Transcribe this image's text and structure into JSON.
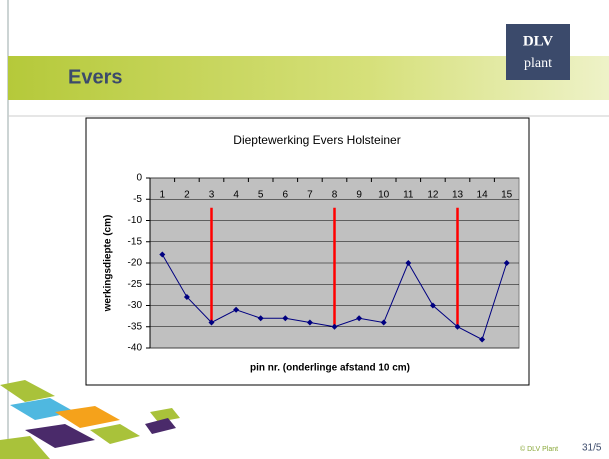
{
  "slide": {
    "title": "Evers",
    "logo": [
      "DLV",
      "plant"
    ],
    "copyright": "© DLV Plant",
    "page": "31/5"
  },
  "chart_data": {
    "type": "line",
    "title": "Dieptewerking Evers Holsteiner",
    "x_label": "pin nr. (onderlinge afstand 10 cm)",
    "y_label": "werkingsdiepte (cm)",
    "categories": [
      "1",
      "2",
      "3",
      "4",
      "5",
      "6",
      "7",
      "8",
      "9",
      "10",
      "11",
      "12",
      "13",
      "14",
      "15"
    ],
    "series": [
      {
        "name": "Evers Holsteiner",
        "color": "#000080",
        "values": [
          -18,
          -28,
          -34,
          -31,
          -33,
          -33,
          -34,
          -35,
          -33,
          -34,
          -20,
          -30,
          -35,
          -38,
          -20
        ]
      }
    ],
    "drop_lines": [
      {
        "category": "3",
        "from": -7,
        "to": -34
      },
      {
        "category": "8",
        "from": -7,
        "to": -35
      },
      {
        "category": "13",
        "from": -7,
        "to": -35
      }
    ],
    "drop_line_color": "#ff0000",
    "ylim": [
      -40,
      0
    ],
    "yticks": [
      0,
      -5,
      -10,
      -15,
      -20,
      -25,
      -30,
      -35,
      -40
    ],
    "grid": true,
    "plot_background": "#c0c0c0"
  }
}
